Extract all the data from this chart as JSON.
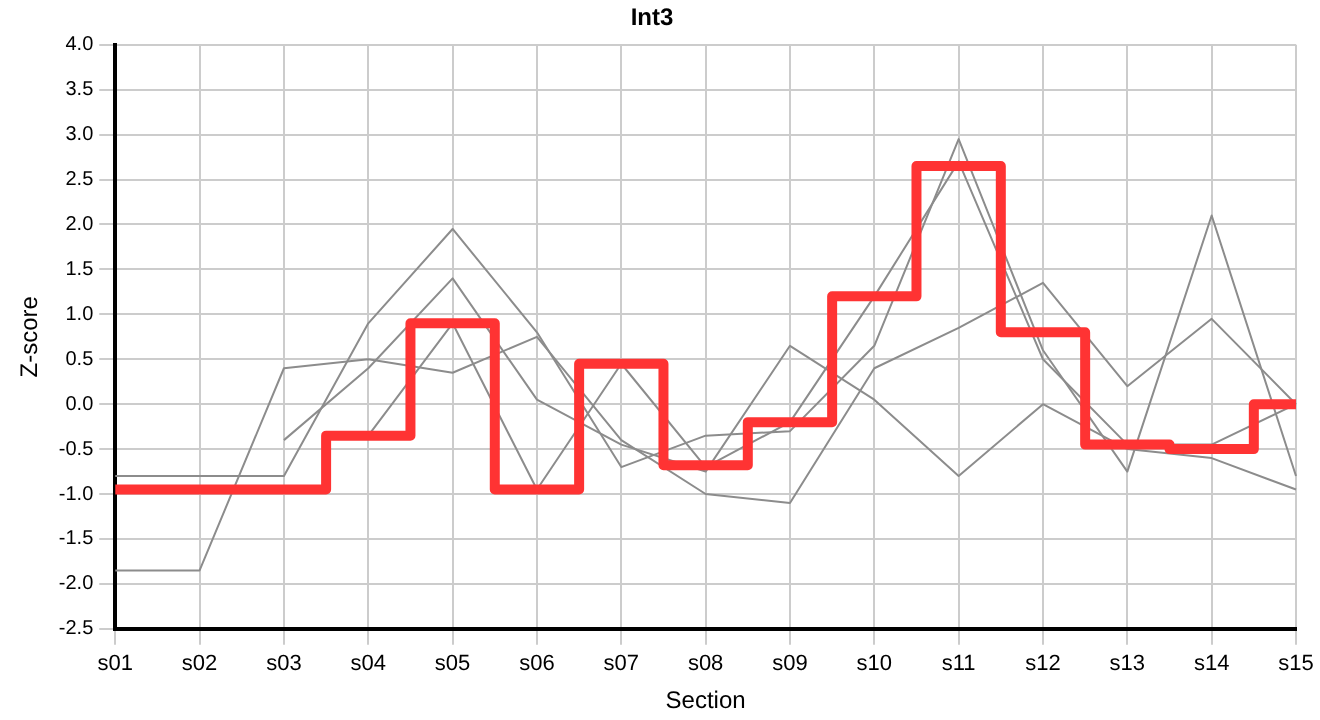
{
  "chart_data": {
    "type": "line",
    "title": "Int3",
    "xlabel": "Section",
    "ylabel": "Z-score",
    "categories": [
      "s01",
      "s02",
      "s03",
      "s04",
      "s05",
      "s06",
      "s07",
      "s08",
      "s09",
      "s10",
      "s11",
      "s12",
      "s13",
      "s14",
      "s15"
    ],
    "series": [
      {
        "color": "#8c8c8c",
        "values": [
          -1.85,
          -1.85,
          0.4,
          0.5,
          0.35,
          0.75,
          -0.4,
          -1.0,
          -1.1,
          0.4,
          0.85,
          1.35,
          0.2,
          0.95,
          0.0
        ]
      },
      {
        "color": "#8c8c8c",
        "values": [
          -0.8,
          -0.8,
          -0.8,
          0.9,
          1.95,
          0.8,
          -0.7,
          -0.35,
          -0.3,
          0.65,
          2.95,
          0.6,
          -0.75,
          2.1,
          -0.8
        ]
      },
      {
        "color": "#8c8c8c",
        "values": [
          null,
          null,
          -0.4,
          0.4,
          1.4,
          0.05,
          -0.45,
          -0.75,
          0.65,
          0.05,
          -0.8,
          0.0,
          -0.5,
          -0.6,
          -0.95
        ]
      },
      {
        "color": "#8c8c8c",
        "values": [
          null,
          null,
          null,
          -0.35,
          0.9,
          -0.95,
          0.45,
          -0.7,
          -0.2,
          1.2,
          2.7,
          0.5,
          -0.45,
          -0.45,
          0.0
        ]
      },
      {
        "type": "step",
        "color": "#ff3333",
        "values": [
          -0.95,
          -0.95,
          -0.95,
          -0.35,
          0.9,
          -0.95,
          0.45,
          -0.68,
          -0.2,
          1.2,
          2.65,
          0.8,
          -0.45,
          -0.5,
          0.0
        ]
      }
    ],
    "ylim": [
      -2.5,
      4.0
    ],
    "yticks": [
      {
        "value": -2.5,
        "label": "-2.5"
      },
      {
        "value": -2,
        "label": "-2.0"
      },
      {
        "value": -1.5,
        "label": "-1.5"
      },
      {
        "value": -1,
        "label": "-1.0"
      },
      {
        "value": -0.5,
        "label": "-0.5"
      },
      {
        "value": 0,
        "label": "0.0"
      },
      {
        "value": 0.5,
        "label": "0.5"
      },
      {
        "value": 1,
        "label": "1.0"
      },
      {
        "value": 1.5,
        "label": "1.5"
      },
      {
        "value": 2,
        "label": "2.0"
      },
      {
        "value": 2.5,
        "label": "2.5"
      },
      {
        "value": 3,
        "label": "3.0"
      },
      {
        "value": 3.5,
        "label": "3.5"
      },
      {
        "value": 4,
        "label": "4.0"
      }
    ],
    "grid": true,
    "legend": false,
    "marker": "none",
    "line_style": "solid"
  }
}
